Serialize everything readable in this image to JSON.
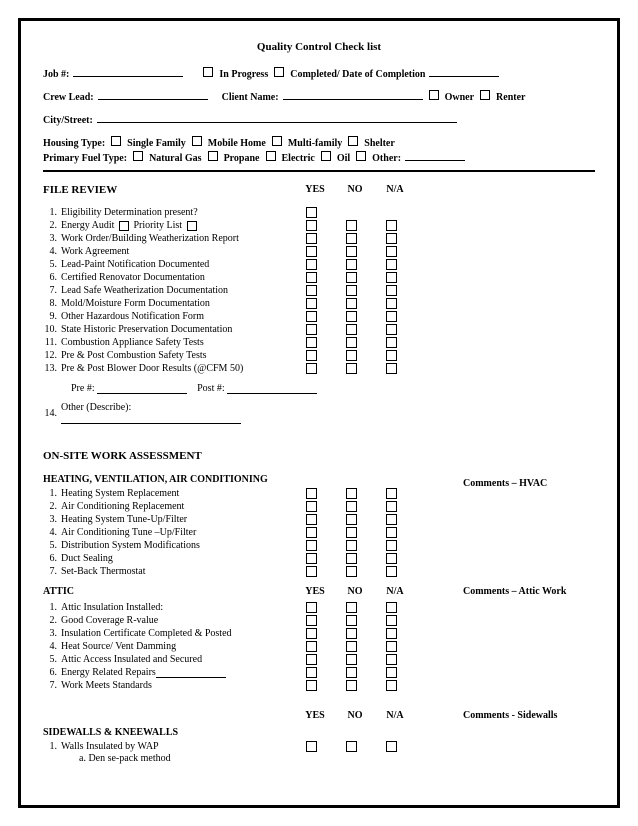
{
  "title": "Quality Control Check list",
  "header": {
    "job_label": "Job #:",
    "in_progress": "In Progress",
    "completed": "Completed/ Date of Completion",
    "crew_lead": "Crew Lead:",
    "client_name": "Client Name:",
    "owner": "Owner",
    "renter": "Renter",
    "city_street": "City/Street:",
    "housing_type": "Housing Type:",
    "ht_single": "Single Family",
    "ht_mobile": "Mobile Home",
    "ht_multi": "Multi-family",
    "ht_shelter": "Shelter",
    "fuel_type": "Primary Fuel Type:",
    "ft_gas": "Natural Gas",
    "ft_propane": "Propane",
    "ft_electric": "Electric",
    "ft_oil": "Oil",
    "ft_other": "Other:"
  },
  "cols": {
    "yes": "YES",
    "no": "NO",
    "na": "N/A"
  },
  "file_review": {
    "heading": "FILE REVIEW",
    "items": [
      "Eligibility Determination present?",
      "Energy Audit       Priority List",
      "Work Order/Building Weatherization Report",
      "Work Agreement",
      "Lead-Paint Notification Documented",
      "Certified Renovator Documentation",
      "Lead Safe Weatherization Documentation",
      "Mold/Moisture Form Documentation",
      "Other Hazardous Notification Form",
      "State Historic Preservation Documentation",
      "Combustion Appliance Safety Tests",
      "Pre & Post Combustion Safety Tests",
      "Pre & Post Blower Door Results (@CFM 50)"
    ],
    "pre_label": "Pre #:",
    "post_label": "Post #:",
    "item14_num": "14.",
    "item14": "Other (Describe):"
  },
  "onsite": {
    "heading": "ON-SITE WORK ASSESSMENT",
    "hvac_head": "HEATING, VENTILATION, AIR CONDITIONING",
    "hvac_comment": "Comments – HVAC",
    "hvac_items": [
      "Heating System Replacement",
      "Air Conditioning Replacement",
      "Heating System Tune-Up/Filter",
      "Air Conditioning Tune –Up/Filter",
      "Distribution System Modifications",
      "Duct Sealing",
      "Set-Back Thermostat"
    ],
    "attic_head": "ATTIC",
    "attic_comment": "Comments – Attic Work",
    "attic_items": [
      "Attic Insulation Installed:",
      "Good Coverage R-value",
      "Insulation Certificate Completed & Posted",
      "Heat Source/ Vent Damming",
      "Attic Access Insulated and Secured",
      "Energy Related Repairs",
      "Work Meets Standards"
    ],
    "sidewalls_head": "SIDEWALLS & KNEEWALLS",
    "sidewalls_comment": "Comments - Sidewalls",
    "sidewalls_items": [
      "Walls Insulated by WAP"
    ],
    "sidewalls_sub": "a.     Den se-pack method"
  }
}
